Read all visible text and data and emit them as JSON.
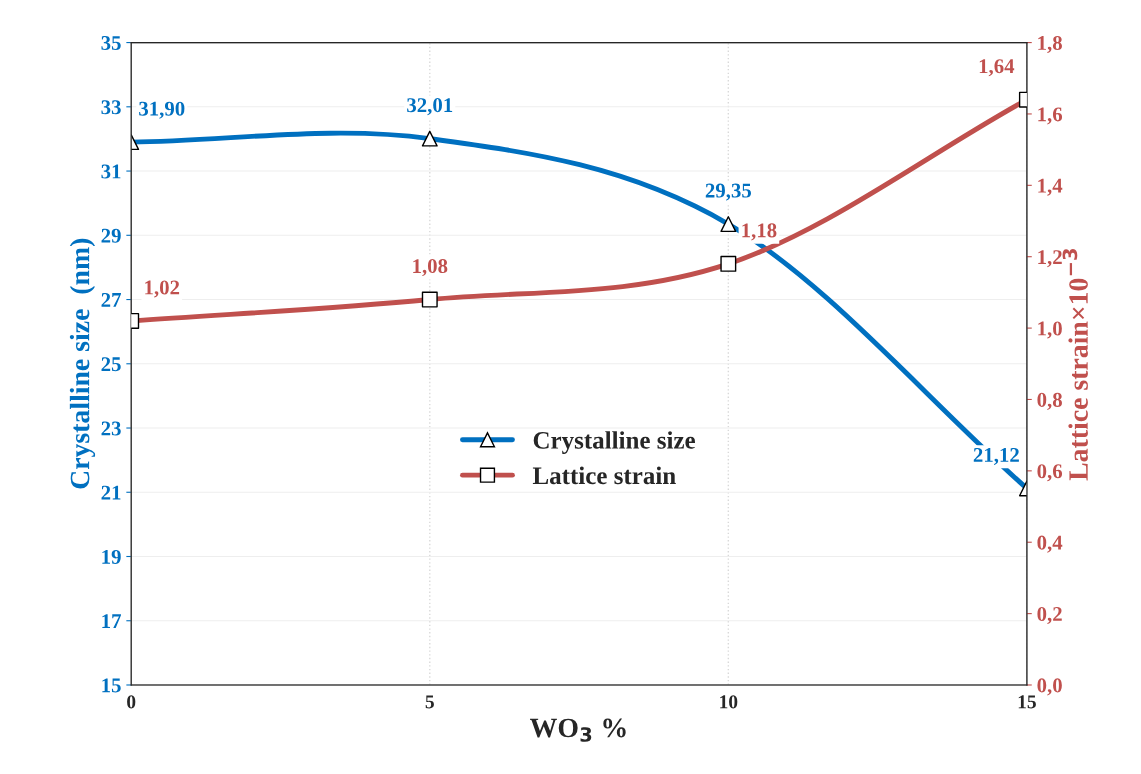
{
  "chart_data": {
    "type": "line",
    "xlabel": "WO$_{3}$ %",
    "ylabel": "Crystalline size  (nm)",
    "y2label": "Lattice strain×10$^{−3}$",
    "x": [
      0,
      5,
      10,
      15
    ],
    "series": [
      {
        "name": "Crystalline size",
        "color": "#0070c0",
        "values": [
          31.9,
          32.01,
          29.35,
          21.12
        ],
        "value_labels": [
          "31,90",
          "32,01",
          "29,35",
          "21,12"
        ],
        "marker": "triangle"
      },
      {
        "name": "Lattice strain",
        "color": "#c0504d",
        "values": [
          1.02,
          1.08,
          1.18,
          1.64
        ],
        "value_labels": [
          "1,02",
          "1,08",
          "1,18",
          "1,64"
        ],
        "marker": "square",
        "axis": "y2"
      }
    ],
    "xlim": [
      0,
      15
    ],
    "xticks": [
      0,
      5,
      10,
      15
    ],
    "ylim": [
      15,
      35
    ],
    "yticks": [
      15,
      17,
      19,
      21,
      23,
      25,
      27,
      29,
      31,
      33,
      35
    ],
    "y2lim": [
      0,
      1.8
    ],
    "y2ticks": [
      {
        "value": 0,
        "label": "0,0"
      },
      {
        "value": 0.2,
        "label": "0,2"
      },
      {
        "value": 0.4,
        "label": "0,4"
      },
      {
        "value": 0.6,
        "label": "0,6"
      },
      {
        "value": 0.8,
        "label": "0,8"
      },
      {
        "value": 1.0,
        "label": "1,0"
      },
      {
        "value": 1.2,
        "label": "1,2"
      },
      {
        "value": 1.4,
        "label": "1,4"
      },
      {
        "value": 1.6,
        "label": "1,6"
      },
      {
        "value": 1.8,
        "label": "1,8"
      }
    ],
    "grid": true,
    "legend": "center",
    "line_style": "solid"
  }
}
